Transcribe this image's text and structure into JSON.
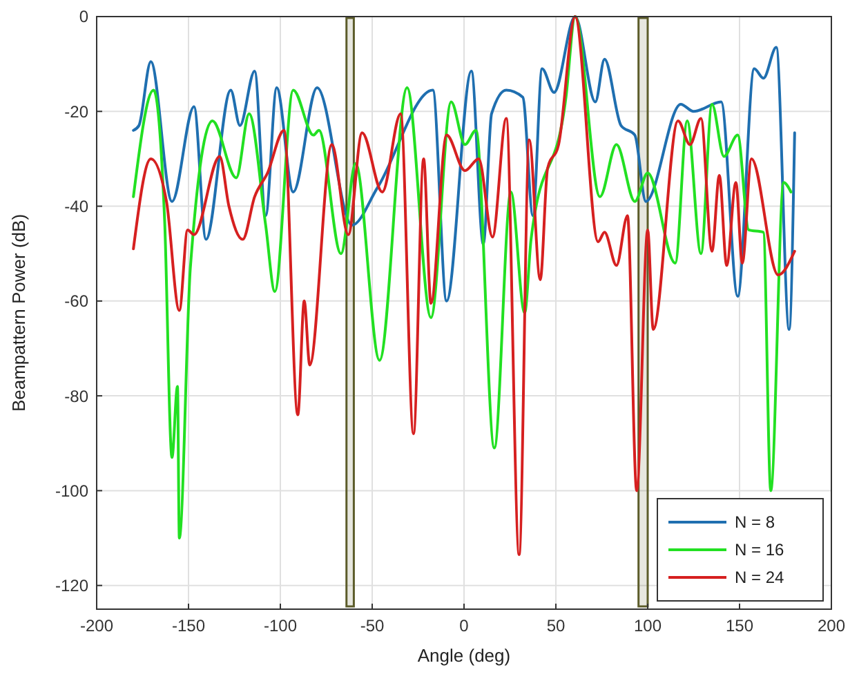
{
  "chart_data": {
    "type": "line",
    "xlabel": "Angle (deg)",
    "ylabel": "Beampattern Power (dB)",
    "xlim": [
      -200,
      200
    ],
    "xticks": [
      -200,
      -150,
      -100,
      -50,
      0,
      50,
      100,
      150,
      200
    ],
    "ylim": [
      -125,
      0
    ],
    "yticks": [
      -120,
      -100,
      -80,
      -60,
      -40,
      -20,
      0
    ],
    "grid": true,
    "legend": "bottom right",
    "line_style": "solid",
    "bands": [
      {
        "axis": "x",
        "from": -64,
        "to": -60,
        "color": "#5c5c2a"
      },
      {
        "axis": "x",
        "from": 95,
        "to": 100,
        "color": "#5c5c2a"
      }
    ],
    "series": [
      {
        "name": "N = 8",
        "color": "#1f6fb0",
        "x": [
          -180,
          -177,
          -170.5,
          -159,
          -147,
          -140.5,
          -127,
          -122,
          -114,
          -108,
          -102,
          -93,
          -80,
          -61,
          -47,
          -17,
          -9.5,
          4,
          10.5,
          15,
          23,
          32,
          37.5,
          42.5,
          49,
          60.5,
          71.5,
          76.5,
          85.5,
          93,
          99,
          118,
          125,
          140,
          149,
          158,
          163,
          170,
          177,
          180
        ],
        "values": [
          -24,
          -23,
          -9.5,
          -39,
          -19,
          -47,
          -15.5,
          -23,
          -11.5,
          -42,
          -15,
          -37,
          -15,
          -44,
          -36,
          -15.5,
          -60,
          -11.5,
          -48,
          -20.5,
          -15.5,
          -17,
          -42,
          -11,
          -16,
          0,
          -18,
          -9,
          -23,
          -25,
          -39,
          -18.5,
          -20,
          -18,
          -59,
          -11,
          -13,
          -6.5,
          -66,
          -24.5
        ]
      },
      {
        "name": "N = 16",
        "color": "#22e022",
        "x": [
          -180,
          -169,
          -163,
          -159,
          -156,
          -155,
          -149,
          -137,
          -124,
          -117,
          -108,
          -103,
          -93,
          -82,
          -79,
          -67,
          -59,
          -46,
          -31,
          -18,
          -7,
          0.5,
          6.5,
          16.5,
          25.5,
          33,
          36.5,
          55.5,
          60.5,
          74,
          83,
          93,
          100,
          115,
          121.5,
          129,
          135,
          141.5,
          149,
          155,
          163,
          167,
          174,
          178
        ],
        "values": [
          -38,
          -15.5,
          -43,
          -93,
          -78,
          -110,
          -53,
          -22,
          -34,
          -20.5,
          -44,
          -58,
          -15.5,
          -25,
          -24,
          -50,
          -31,
          -72.5,
          -15,
          -63.5,
          -18,
          -27,
          -24,
          -91,
          -37,
          -62.5,
          -47,
          -17,
          0,
          -38,
          -27,
          -39,
          -33,
          -52,
          -22,
          -50,
          -18.5,
          -29.5,
          -25,
          -45,
          -45.5,
          -100,
          -35,
          -37
        ]
      },
      {
        "name": "N = 24",
        "color": "#d62020",
        "x": [
          -180,
          -170.5,
          -162,
          -155,
          -150.5,
          -147,
          -133,
          -128,
          -120.5,
          -114,
          -107,
          -98,
          -90.5,
          -87,
          -84,
          -72,
          -63,
          -55.5,
          -44.5,
          -34.5,
          -27.5,
          -22,
          -18,
          -9.5,
          0.5,
          8,
          15.5,
          23,
          30,
          35.5,
          41.5,
          45.5,
          51.5,
          60.5,
          73,
          76.5,
          83,
          89,
          94,
          100,
          103,
          116.5,
          123,
          129,
          135,
          139,
          143,
          148,
          151.5,
          156.5,
          171,
          180
        ],
        "values": [
          -49,
          -30,
          -39,
          -62,
          -45,
          -46,
          -29.5,
          -40,
          -47,
          -38,
          -33,
          -24,
          -84,
          -60,
          -73.5,
          -27,
          -46,
          -24.5,
          -37,
          -20.5,
          -88,
          -30,
          -60.5,
          -25,
          -32.5,
          -30,
          -46.5,
          -21.5,
          -113.5,
          -26,
          -55.5,
          -32,
          -27,
          0,
          -47.5,
          -45.5,
          -52.5,
          -42,
          -100,
          -45,
          -66,
          -22,
          -27,
          -21.5,
          -49.5,
          -33.5,
          -52.5,
          -35,
          -52,
          -30,
          -54.5,
          -49.5
        ]
      }
    ]
  }
}
